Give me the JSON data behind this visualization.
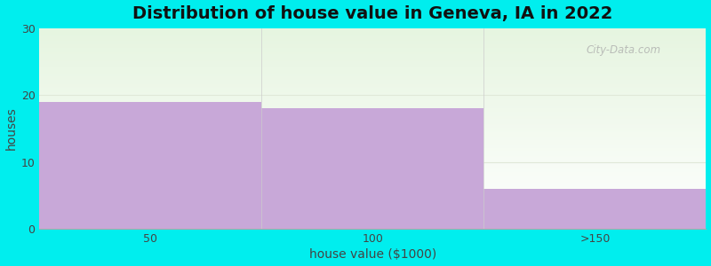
{
  "categories": [
    "50",
    "100",
    ">150"
  ],
  "values": [
    19,
    18,
    6
  ],
  "bar_color": "#C8A8D8",
  "background_color": "#00EEEE",
  "plot_bg_top": "#E6F5E0",
  "plot_bg_bottom": "#FFFFFF",
  "title": "Distribution of house value in Geneva, IA in 2022",
  "xlabel": "house value ($1000)",
  "ylabel": "houses",
  "ylim": [
    0,
    30
  ],
  "yticks": [
    0,
    10,
    20,
    30
  ],
  "title_fontsize": 14,
  "label_fontsize": 10,
  "tick_fontsize": 9,
  "watermark": "City-Data.com",
  "grid_color": "#E0E8D8",
  "grid_linewidth": 0.8
}
